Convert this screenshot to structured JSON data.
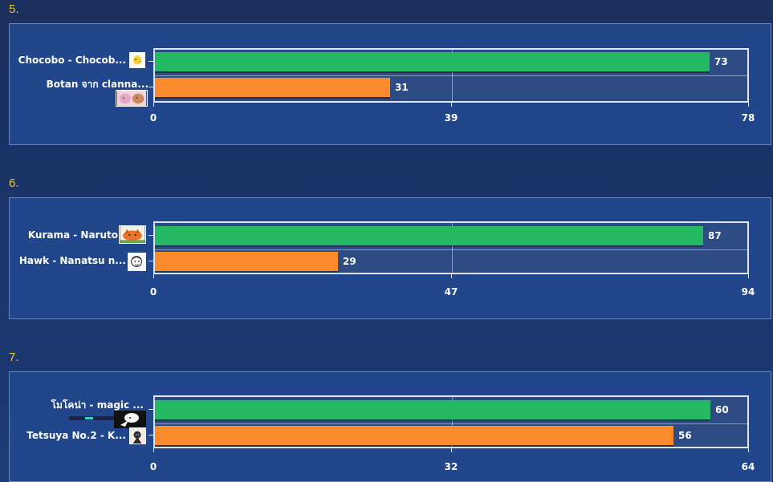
{
  "chart_data": [
    {
      "type": "bar",
      "orientation": "horizontal",
      "rank": "5.",
      "categories": [
        "Chocobo - Chocob...",
        "Botan จาก clanna..."
      ],
      "values": [
        73,
        31
      ],
      "colors": [
        "#25b865",
        "#fb8b2c"
      ],
      "xlim": [
        0,
        78
      ],
      "xticks": [
        "0",
        "39",
        "78"
      ],
      "icons": [
        "chocobo-thumbnail-icon",
        "botan-thumbnail-icon"
      ]
    },
    {
      "type": "bar",
      "orientation": "horizontal",
      "rank": "6.",
      "categories": [
        "Kurama - Naruto",
        "Hawk - Nanatsu n..."
      ],
      "values": [
        87,
        29
      ],
      "colors": [
        "#25b865",
        "#fb8b2c"
      ],
      "xlim": [
        0,
        94
      ],
      "xticks": [
        "0",
        "47",
        "94"
      ],
      "icons": [
        "kurama-thumbnail-icon",
        "hawk-thumbnail-icon"
      ]
    },
    {
      "type": "bar",
      "orientation": "horizontal",
      "rank": "7.",
      "categories": [
        "โมโคน่า - magic ...",
        "Tetsuya No.2 - K..."
      ],
      "values": [
        60,
        56
      ],
      "colors": [
        "#25b865",
        "#fb8b2c"
      ],
      "xlim": [
        0,
        64
      ],
      "xticks": [
        "0",
        "32",
        "64"
      ],
      "icons": [
        "mokona-thumbnail-icon",
        "tetsuya-thumbnail-icon"
      ]
    }
  ]
}
